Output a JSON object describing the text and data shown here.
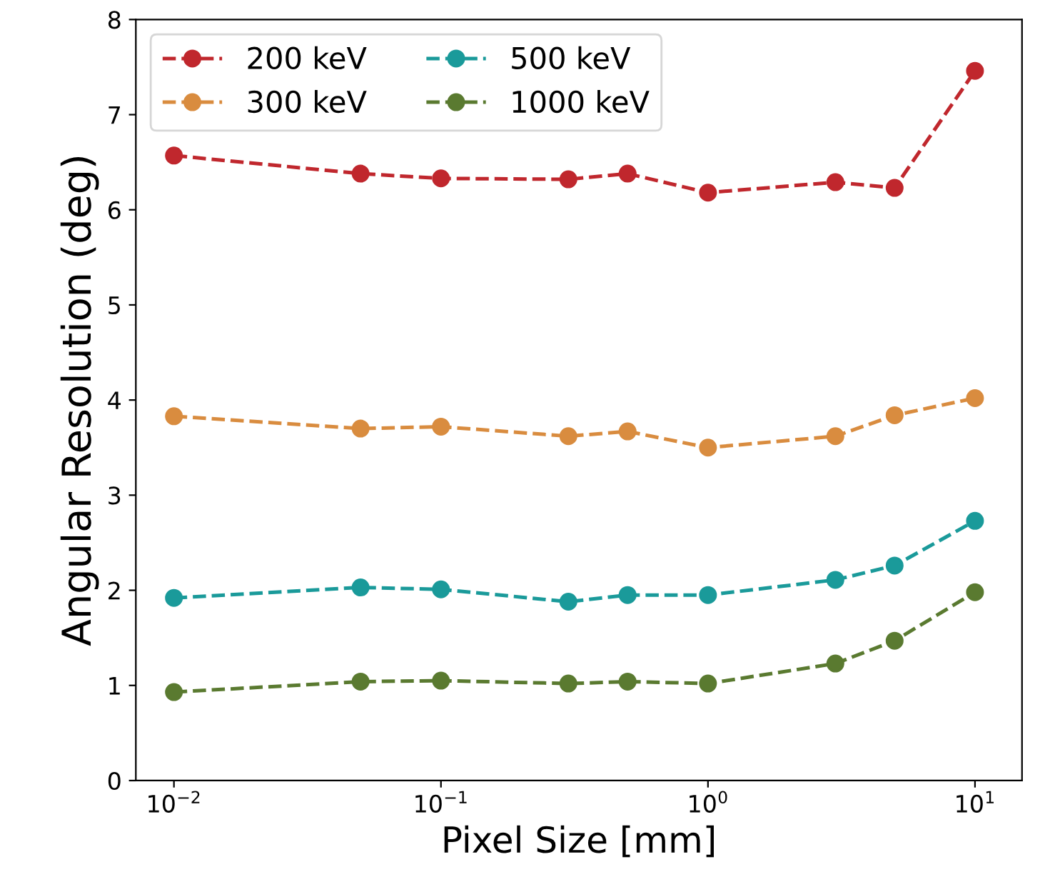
{
  "chart_data": {
    "type": "line",
    "xlabel": "Pixel Size [mm]",
    "ylabel": "Angular Resolution (deg)",
    "log": "x",
    "x": [
      0.01,
      0.05,
      0.1,
      0.3,
      0.5,
      1,
      3,
      5,
      10
    ],
    "series": [
      {
        "name": "200 keV",
        "color": "#c0272d",
        "values": [
          6.57,
          6.38,
          6.33,
          6.32,
          6.38,
          6.18,
          6.29,
          6.23,
          7.46
        ]
      },
      {
        "name": "300 keV",
        "color": "#d98c3f",
        "values": [
          3.83,
          3.7,
          3.72,
          3.62,
          3.67,
          3.5,
          3.62,
          3.84,
          4.02
        ]
      },
      {
        "name": "500 keV",
        "color": "#1a9a9a",
        "values": [
          1.92,
          2.03,
          2.01,
          1.88,
          1.95,
          1.95,
          2.11,
          2.26,
          2.73
        ]
      },
      {
        "name": "1000 keV",
        "color": "#5a7a30",
        "values": [
          0.93,
          1.04,
          1.05,
          1.02,
          1.04,
          1.02,
          1.23,
          1.47,
          1.98
        ]
      }
    ],
    "xlim": [
      0.0072,
      15
    ],
    "xticks": [
      {
        "value": 0.01,
        "label": "10$^{−2}$"
      },
      {
        "value": 0.1,
        "label": "10$^{−1}$"
      },
      {
        "value": 1,
        "label": "10$^{0}$"
      },
      {
        "value": 10,
        "label": "10$^{1}$"
      }
    ],
    "ylim": [
      0,
      8
    ],
    "yticks": [
      0,
      1,
      2,
      3,
      4,
      5,
      6,
      7,
      8
    ],
    "legend": "top left",
    "marker": "circle",
    "line_style": "dashed",
    "grid": false
  }
}
